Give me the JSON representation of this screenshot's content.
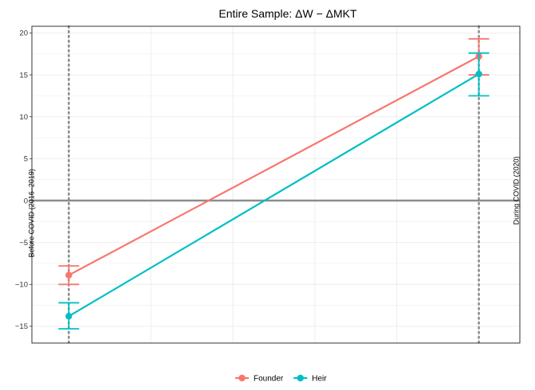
{
  "chart_data": {
    "type": "line",
    "title": "Entire Sample: ΔW − ΔMKT",
    "xlabel": "",
    "ylabel": "",
    "x": [
      "Before COVID (2016–2019)",
      "During COVID (2020)"
    ],
    "xlim": [
      -0.09,
      1.1
    ],
    "ylim": [
      -17,
      20.8
    ],
    "yticks": [
      -15,
      -10,
      -5,
      0,
      5,
      10,
      15,
      20
    ],
    "ytick_labels": [
      "−15",
      "−10",
      "−5",
      "0",
      "5",
      "10",
      "15",
      "20"
    ],
    "grid": true,
    "hline": 0,
    "vlines": [
      0,
      1
    ],
    "series": [
      {
        "name": "Founder",
        "color": "#F8766D",
        "values": [
          -8.9,
          17.2
        ],
        "ci_low": [
          -10.0,
          15.0
        ],
        "ci_high": [
          -7.8,
          19.3
        ]
      },
      {
        "name": "Heir",
        "color": "#00BFC4",
        "values": [
          -13.8,
          15.1
        ],
        "ci_low": [
          -15.3,
          12.5
        ],
        "ci_high": [
          -12.2,
          17.6
        ]
      }
    ],
    "annotations": [
      {
        "text": "Before COVID (2016–2019)",
        "x": 0
      },
      {
        "text": "During COVID (2020)",
        "x": 1
      }
    ],
    "legend": {
      "position": "bottom",
      "entries": [
        "Founder",
        "Heir"
      ]
    }
  }
}
